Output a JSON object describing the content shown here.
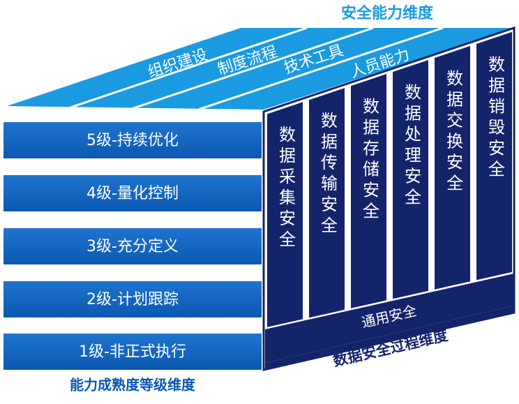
{
  "top_title": "安全能力维度",
  "capability_dimensions": [
    "组织建设",
    "制度流程",
    "技术工具",
    "人员能力"
  ],
  "levels": [
    "5级-持续优化",
    "4级-量化控制",
    "3级-充分定义",
    "2级-计划跟踪",
    "1级-非正式执行"
  ],
  "left_label": "能力成熟度等级维度",
  "process_areas": [
    "数据采集安全",
    "数据传输安全",
    "数据存储安全",
    "数据处理安全",
    "数据交换安全",
    "数据销毁安全"
  ],
  "general": "通用安全",
  "process_label": "数据安全过程维度"
}
